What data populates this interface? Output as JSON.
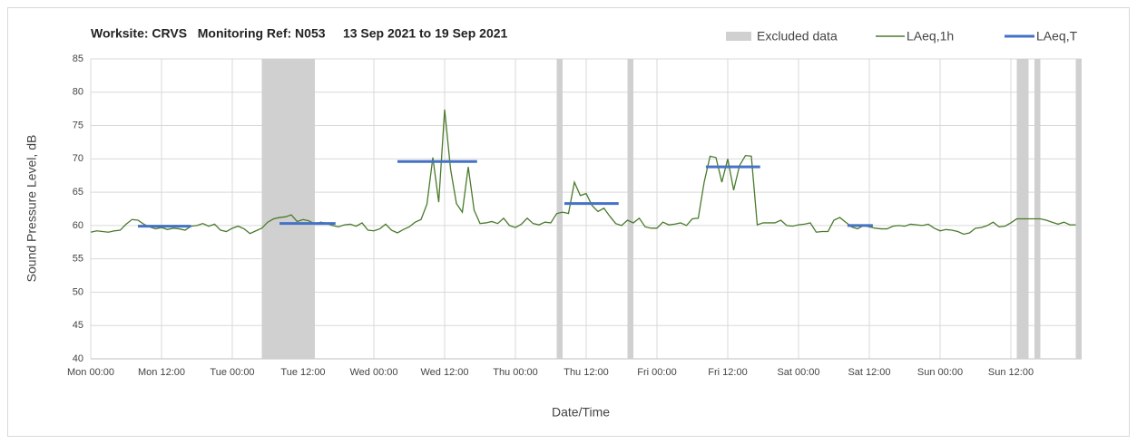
{
  "chart_data": {
    "type": "line",
    "title": "Worksite: CRVS   Monitoring Ref: N053     13 Sep 2021 to 19 Sep 2021",
    "xlabel": "Date/Time",
    "ylabel": "Sound Pressure Level, dB",
    "xlim": [
      0,
      168
    ],
    "xticks": [
      {
        "value": 0,
        "label": "Mon 00:00"
      },
      {
        "value": 12,
        "label": "Mon 12:00"
      },
      {
        "value": 24,
        "label": "Tue 00:00"
      },
      {
        "value": 36,
        "label": "Tue 12:00"
      },
      {
        "value": 48,
        "label": "Wed 00:00"
      },
      {
        "value": 60,
        "label": "Wed 12:00"
      },
      {
        "value": 72,
        "label": "Thu 00:00"
      },
      {
        "value": 84,
        "label": "Thu 12:00"
      },
      {
        "value": 96,
        "label": "Fri 00:00"
      },
      {
        "value": 108,
        "label": "Fri 12:00"
      },
      {
        "value": 120,
        "label": "Sat 00:00"
      },
      {
        "value": 132,
        "label": "Sat 12:00"
      },
      {
        "value": 144,
        "label": "Sun 00:00"
      },
      {
        "value": 156,
        "label": "Sun 12:00"
      }
    ],
    "ylim": [
      40,
      85
    ],
    "yticks": [
      40,
      45,
      50,
      55,
      60,
      65,
      70,
      75,
      80,
      85
    ],
    "grid": true,
    "excluded": {
      "name": "Excluded data",
      "color": "#d0d0d0",
      "ranges": [
        [
          29,
          38
        ],
        [
          79,
          80
        ],
        [
          91,
          92
        ],
        [
          157,
          159
        ],
        [
          160,
          161
        ],
        [
          167,
          168
        ]
      ]
    },
    "series": [
      {
        "name": "LAeq,1h",
        "color": "#4a7a2c",
        "x": [
          0,
          1,
          2,
          3,
          4,
          5,
          6,
          7,
          8,
          9,
          10,
          11,
          12,
          13,
          14,
          15,
          16,
          17,
          18,
          19,
          20,
          21,
          22,
          23,
          24,
          25,
          26,
          27,
          28,
          29,
          30,
          31,
          32,
          33,
          34,
          35,
          36,
          37,
          38,
          39,
          40,
          41,
          42,
          43,
          44,
          45,
          46,
          47,
          48,
          49,
          50,
          51,
          52,
          53,
          54,
          55,
          56,
          57,
          58,
          59,
          60,
          61,
          62,
          63,
          64,
          65,
          66,
          67,
          68,
          69,
          70,
          71,
          72,
          73,
          74,
          75,
          76,
          77,
          78,
          79,
          80,
          81,
          82,
          83,
          84,
          85,
          86,
          87,
          88,
          89,
          90,
          91,
          92,
          93,
          94,
          95,
          96,
          97,
          98,
          99,
          100,
          101,
          102,
          103,
          104,
          105,
          106,
          107,
          108,
          109,
          110,
          111,
          112,
          113,
          114,
          115,
          116,
          117,
          118,
          119,
          120,
          121,
          122,
          123,
          124,
          125,
          126,
          127,
          128,
          129,
          130,
          131,
          132,
          133,
          134,
          135,
          136,
          137,
          138,
          139,
          140,
          141,
          142,
          143,
          144,
          145,
          146,
          147,
          148,
          149,
          150,
          151,
          152,
          153,
          154,
          155,
          156,
          157,
          158,
          159,
          160,
          161,
          162,
          163,
          164,
          165,
          166,
          167
        ],
        "values": [
          59.0,
          59.2,
          59.1,
          59.0,
          59.2,
          59.3,
          60.2,
          60.9,
          60.8,
          60.2,
          59.8,
          59.5,
          59.7,
          59.4,
          59.6,
          59.5,
          59.3,
          59.9,
          60.0,
          60.3,
          59.9,
          60.2,
          59.3,
          59.1,
          59.6,
          59.9,
          59.5,
          58.8,
          59.2,
          59.6,
          60.5,
          61.0,
          61.2,
          61.3,
          61.6,
          60.6,
          60.9,
          60.7,
          60.2,
          60.5,
          60.3,
          60.0,
          59.8,
          60.1,
          60.2,
          59.9,
          60.4,
          59.3,
          59.2,
          59.5,
          60.2,
          59.3,
          58.9,
          59.4,
          59.8,
          60.5,
          60.9,
          63.2,
          70.2,
          63.5,
          77.4,
          68.5,
          63.3,
          62.0,
          68.8,
          62.3,
          60.3,
          60.4,
          60.6,
          60.3,
          61.1,
          60.0,
          59.7,
          60.2,
          61.1,
          60.3,
          60.1,
          60.5,
          60.4,
          61.8,
          62.0,
          61.8,
          66.5,
          64.5,
          64.8,
          63.0,
          62.1,
          62.6,
          61.4,
          60.3,
          60.0,
          60.8,
          60.4,
          61.1,
          59.8,
          59.6,
          59.6,
          60.5,
          60.1,
          60.2,
          60.4,
          60.0,
          61.0,
          61.1,
          66.5,
          70.4,
          70.2,
          66.5,
          70.0,
          65.3,
          69.0,
          70.5,
          70.4,
          60.1,
          60.4,
          60.4,
          60.4,
          60.8,
          60.0,
          59.9,
          60.1,
          60.2,
          60.4,
          59.0,
          59.1,
          59.1,
          60.8,
          61.2,
          60.5,
          59.8,
          59.5,
          60.0,
          59.8,
          59.6,
          59.5,
          59.5,
          59.9,
          60.0,
          59.9,
          60.2,
          60.1,
          60.0,
          60.2,
          59.6,
          59.2,
          59.4,
          59.3,
          59.1,
          58.7,
          58.9,
          59.6,
          59.7,
          60.0,
          60.5,
          59.8,
          59.9,
          60.4,
          61.0,
          61.0,
          61.0,
          61.0,
          61.0,
          60.8,
          60.5,
          60.2,
          60.5,
          60.1,
          60.1
        ]
      }
    ],
    "levels": {
      "name": "LAeq,T",
      "color": "#4472c4",
      "ranges": [
        [
          8,
          17
        ],
        [
          32,
          41.5
        ],
        [
          52,
          65.5
        ],
        [
          80.3,
          89.5
        ],
        [
          104.3,
          113.5
        ],
        [
          128.3,
          132.6
        ]
      ],
      "values": [
        59.9,
        60.3,
        69.6,
        63.3,
        68.8,
        60.0
      ]
    }
  }
}
